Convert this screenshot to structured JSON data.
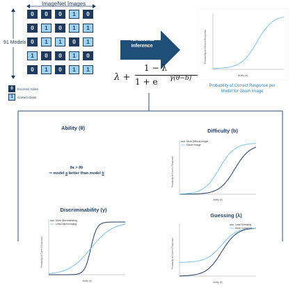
{
  "grid": {
    "title": "ImageNet Images",
    "row_label": "91 Models",
    "rows": [
      [
        "0",
        "0",
        "0",
        "1",
        "0"
      ],
      [
        "0",
        "1",
        "0",
        "1",
        "1"
      ],
      [
        "0",
        "1",
        "1",
        "0",
        "1"
      ],
      [
        "1",
        "0",
        "0",
        "1",
        "0"
      ],
      [
        "0",
        "1",
        "0",
        "1",
        "1"
      ]
    ]
  },
  "legend": {
    "incorrect": {
      "symbol": "0",
      "label": "Incorrect Class"
    },
    "correct": {
      "symbol": "1",
      "label": "Correct Class"
    }
  },
  "arrow": {
    "label_line1": "Variational",
    "label_line2": "Inference"
  },
  "formula": {
    "lead": "λ +",
    "numerator": "1 − λ",
    "denominator": "1 + e",
    "exponent": "γ(θ−b)"
  },
  "main_plot": {
    "ylabel": "Probability of Correct Response",
    "xlabel": "Ability (θ)",
    "caption_line1": "Probability of Correct Response per",
    "caption_line2": "Model for Given Image"
  },
  "panels": {
    "ability": {
      "title": "Ability (θ)",
      "line1": "θa > θb",
      "line2_prefix": "⇒ model ",
      "model_a": "a",
      "line2_middle": " better than model ",
      "model_b": "b"
    },
    "difficulty": {
      "title": "Difficulty (b)",
      "legend1": "More Difficult Image",
      "legend2": "Easier Image",
      "ylabel": "Probability of Correct Response",
      "xlabel": "Ability (θ)"
    },
    "discriminability": {
      "title": "Discriminability (γ)",
      "legend1": "More Discriminating",
      "legend2": "Less Discriminating",
      "ylabel": "Probability of Correct Response",
      "xlabel": "Ability (θ)"
    },
    "guessing": {
      "title": "Guessing (λ)",
      "legend1": "Less Guessing",
      "legend2": "More Guessing",
      "ylabel": "Probability of Correct Response",
      "xlabel": "Ability (θ)"
    }
  },
  "colors": {
    "dark": "#1f3a5f",
    "light": "#9dd3f0",
    "accent": "#2e86c1",
    "arrow": "#1f4e79"
  }
}
